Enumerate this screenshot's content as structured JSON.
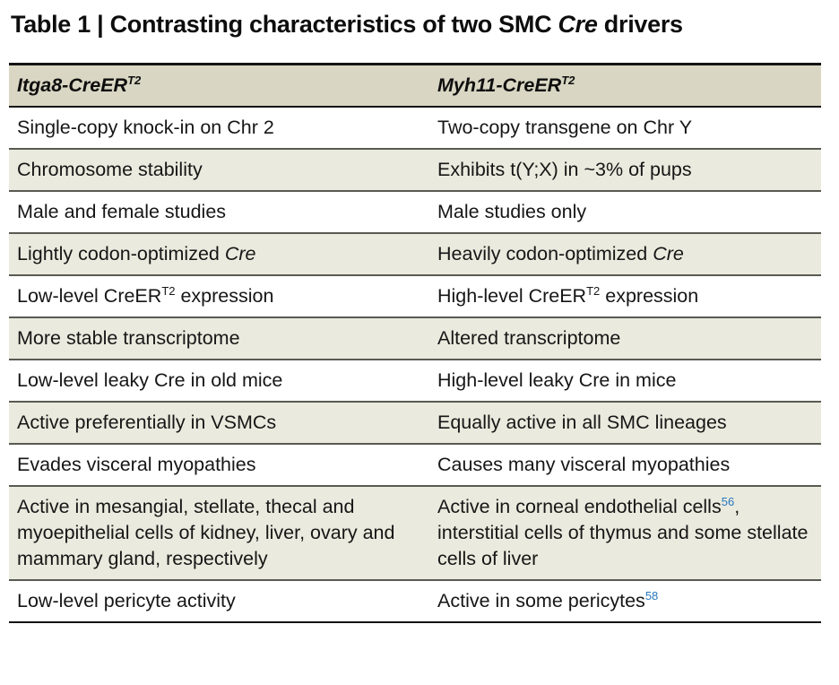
{
  "title": {
    "segments": [
      {
        "t": "Table 1 | Contrasting characteristics of two SMC "
      },
      {
        "t": "Cre",
        "italic": true
      },
      {
        "t": " drivers"
      }
    ]
  },
  "colors": {
    "header_bg": "#d9d6c3",
    "shade_row_bg": "#eaeade",
    "reference_link_blue": "#2878be",
    "heavy_border": "#141414",
    "row_separator": "#595a52",
    "body_text": "#161616"
  },
  "table": {
    "columns": [
      {
        "segments": [
          {
            "t": "Itga8-CreER"
          },
          {
            "t": "T2",
            "sup": true
          }
        ]
      },
      {
        "segments": [
          {
            "t": "Myh11-CreER"
          },
          {
            "t": "T2",
            "sup": true
          }
        ]
      }
    ],
    "rows": [
      {
        "left": [
          {
            "t": "Single-copy knock-in on Chr 2"
          }
        ],
        "right": [
          {
            "t": "Two-copy transgene on Chr Y"
          }
        ]
      },
      {
        "left": [
          {
            "t": "Chromosome stability"
          }
        ],
        "right": [
          {
            "t": "Exhibits t(Y;X) in ~3% of pups"
          }
        ]
      },
      {
        "left": [
          {
            "t": "Male and female studies"
          }
        ],
        "right": [
          {
            "t": "Male studies only"
          }
        ]
      },
      {
        "left": [
          {
            "t": "Lightly codon-optimized "
          },
          {
            "t": "Cre",
            "italic": true
          }
        ],
        "right": [
          {
            "t": "Heavily codon-optimized "
          },
          {
            "t": "Cre",
            "italic": true
          }
        ]
      },
      {
        "left": [
          {
            "t": "Low-level CreER"
          },
          {
            "t": "T2",
            "sup": true
          },
          {
            "t": " expression"
          }
        ],
        "right": [
          {
            "t": "High-level CreER"
          },
          {
            "t": "T2",
            "sup": true
          },
          {
            "t": " expression"
          }
        ]
      },
      {
        "left": [
          {
            "t": "More stable transcriptome"
          }
        ],
        "right": [
          {
            "t": "Altered transcriptome"
          }
        ]
      },
      {
        "left": [
          {
            "t": "Low-level leaky Cre in old mice"
          }
        ],
        "right": [
          {
            "t": "High-level leaky Cre in mice"
          }
        ]
      },
      {
        "left": [
          {
            "t": "Active preferentially in VSMCs"
          }
        ],
        "right": [
          {
            "t": "Equally active in all SMC lineages"
          }
        ]
      },
      {
        "left": [
          {
            "t": "Evades visceral myopathies"
          }
        ],
        "right": [
          {
            "t": "Causes many visceral myopathies"
          }
        ]
      },
      {
        "left": [
          {
            "t": "Active in mesangial, stellate, thecal and myoepithelial cells of kidney, liver, ovary and mammary gland, respectively"
          }
        ],
        "right": [
          {
            "t": "Active in corneal endothelial cells"
          },
          {
            "t": "56",
            "ref": true
          },
          {
            "t": ", interstitial cells of thymus and some stellate cells of liver"
          }
        ]
      },
      {
        "left": [
          {
            "t": "Low-level pericyte activity"
          }
        ],
        "right": [
          {
            "t": "Active in some pericytes"
          },
          {
            "t": "58",
            "ref": true
          }
        ]
      }
    ]
  }
}
